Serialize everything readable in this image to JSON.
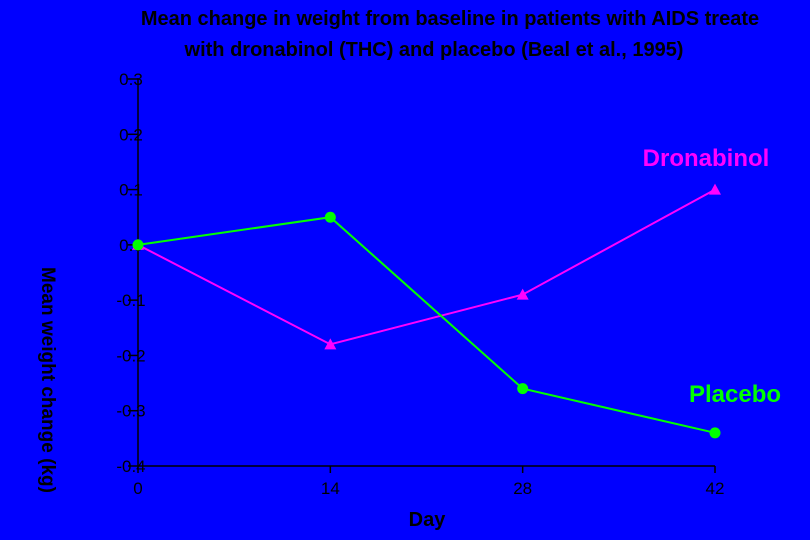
{
  "chart_data": {
    "type": "line",
    "title_lines": [
      "Mean change in weight from baseline in patients with AIDS treate",
      "with dronabinol (THC) and placebo (Beal et al., 1995)"
    ],
    "xlabel": "Day",
    "ylabel": "Mean weight change (kg)",
    "x": [
      0,
      14,
      28,
      42
    ],
    "xticks": [
      "0",
      "14",
      "28",
      "42"
    ],
    "yticks": [
      "0.3",
      "0.2",
      "0.1",
      "0.0",
      "-0.1",
      "-0.2",
      "-0.3",
      "-0.4"
    ],
    "ylim": [
      -0.4,
      0.3
    ],
    "xlim": [
      0,
      42
    ],
    "grid": false,
    "series": [
      {
        "name": "Dronabinol",
        "values": [
          0.0,
          -0.18,
          -0.09,
          0.1
        ],
        "color": "#ff00ff",
        "marker": "triangle"
      },
      {
        "name": "Placebo",
        "values": [
          0.0,
          0.05,
          -0.26,
          -0.34
        ],
        "color": "#00ff00",
        "marker": "circle"
      }
    ]
  },
  "colors": {
    "background": "#0000ff",
    "axis": "#000000"
  }
}
